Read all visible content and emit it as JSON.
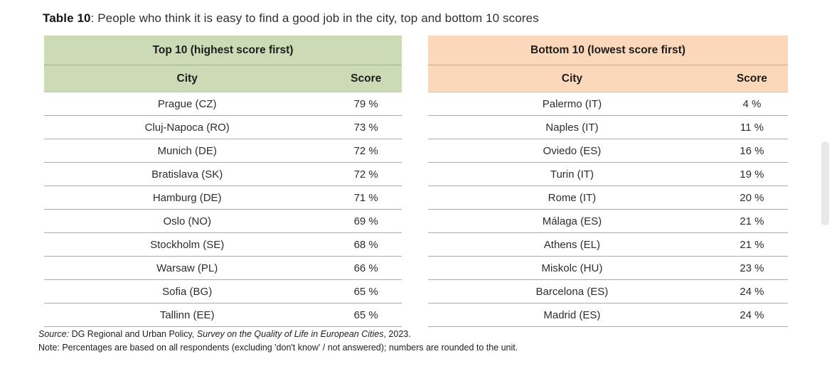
{
  "title": {
    "bold": "Table 10",
    "rest": ": People who think it is easy to find a good job in the city, top and bottom 10 scores"
  },
  "colors": {
    "top_header_bg": "#ccdbb5",
    "bottom_header_bg": "#fcd8ba",
    "row_separator": "#ababab"
  },
  "chart_data": [
    {
      "type": "table",
      "title": "Top 10 (highest score first)",
      "columns": [
        "City",
        "Score"
      ],
      "rows": [
        [
          "Prague (CZ)",
          "79 %"
        ],
        [
          "Cluj-Napoca (RO)",
          "73 %"
        ],
        [
          "Munich (DE)",
          "72 %"
        ],
        [
          "Bratislava (SK)",
          "72 %"
        ],
        [
          "Hamburg (DE)",
          "71 %"
        ],
        [
          "Oslo (NO)",
          "69 %"
        ],
        [
          "Stockholm (SE)",
          "68 %"
        ],
        [
          "Warsaw (PL)",
          "66 %"
        ],
        [
          "Sofia (BG)",
          "65 %"
        ],
        [
          "Tallinn (EE)",
          "65 %"
        ]
      ]
    },
    {
      "type": "table",
      "title": "Bottom 10 (lowest score first)",
      "columns": [
        "City",
        "Score"
      ],
      "rows": [
        [
          "Palermo (IT)",
          "4 %"
        ],
        [
          "Naples (IT)",
          "11 %"
        ],
        [
          "Oviedo (ES)",
          "16 %"
        ],
        [
          "Turin (IT)",
          "19 %"
        ],
        [
          "Rome (IT)",
          "20 %"
        ],
        [
          "Málaga (ES)",
          "21 %"
        ],
        [
          "Athens (EL)",
          "21 %"
        ],
        [
          "Miskolc (HU)",
          "23 %"
        ],
        [
          "Barcelona (ES)",
          "24 %"
        ],
        [
          "Madrid (ES)",
          "24 %"
        ]
      ]
    }
  ],
  "footer": {
    "source_label": "Source:",
    "source_text": " DG Regional and Urban Policy, ",
    "source_publication": "Survey on the Quality of Life in European Cities",
    "source_year": ", 2023.",
    "note": "Note: Percentages are based on all respondents (excluding 'don't know' / not answered); numbers are rounded to the unit."
  }
}
